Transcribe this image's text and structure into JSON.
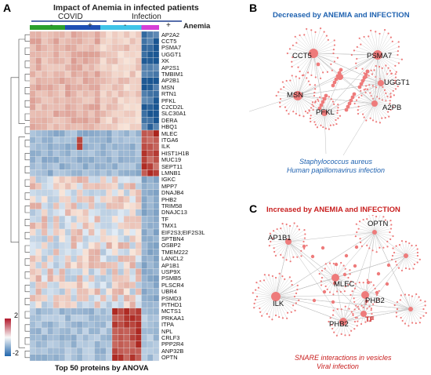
{
  "panelA": {
    "letter": "A",
    "title": "Impact of Anemia in infected patients",
    "group_covid": "COVID",
    "group_infection": "Infection",
    "anemia_label": "Anemia",
    "minus": "-",
    "plus": "+",
    "genes": [
      "AP2A2",
      "CCT5",
      "PSMA7",
      "UGGT1",
      "XK",
      "AP2S1",
      "TMBIM1",
      "AP2B1",
      "MSN",
      "RTN1",
      "PFKL",
      "C2CD2L",
      "SLC30A1",
      "DERA",
      "HBQ1",
      "MLEC",
      "ITGA6",
      "ILK",
      "HIST1H1B",
      "MUC19",
      "SEPT11",
      "LMNB1",
      "IGKC",
      "MPP7",
      "DNAJB4",
      "PHB2",
      "TRIM58",
      "DNAJC13",
      "TF",
      "TMX1",
      "EIF2S3;EIF2S3L",
      "SPTBN4",
      "OSBP2",
      "TMEM222",
      "LANCL2",
      "AP1B1",
      "USP9X",
      "PSMB5",
      "PLSCR4",
      "UBR4",
      "PSMD3",
      "PITHD1",
      "MCTS1",
      "PRKAA1",
      "ITPA",
      "NPL",
      "CRLF3",
      "PPP2R4",
      "ANP32B",
      "OPTN"
    ],
    "legend_max": "2",
    "legend_min": "-2",
    "bottom_label": "Top 50 proteins by ANOVA"
  },
  "panelB": {
    "letter": "B",
    "title": "Decreased by ANEMIA and INFECTION",
    "nodes": [
      "CCT5",
      "PSMA7",
      "UGGT1",
      "MSN",
      "PFKL",
      "A2PB"
    ],
    "sub1": "Staphylococcus aureus",
    "sub2": "Human papillomavirus infection"
  },
  "panelC": {
    "letter": "C",
    "title": "Increased by ANEMIA and INFECTION",
    "nodes": [
      "AP1B1",
      "OPTN",
      "MLEC",
      "ILK",
      "PHB2",
      "PHB2",
      "TF"
    ],
    "sub1": "SNARE interactions in vesicles",
    "sub2": "Viral infection"
  },
  "colors": {
    "covid_neg": "#2ca02c",
    "covid_pos": "#1f4fb4",
    "inf_neg": "#40c4e8",
    "inf_pos": "#d63fd6",
    "title_blue": "#1f62b0",
    "title_red": "#c81e1e",
    "node": "#ee7b7b"
  }
}
